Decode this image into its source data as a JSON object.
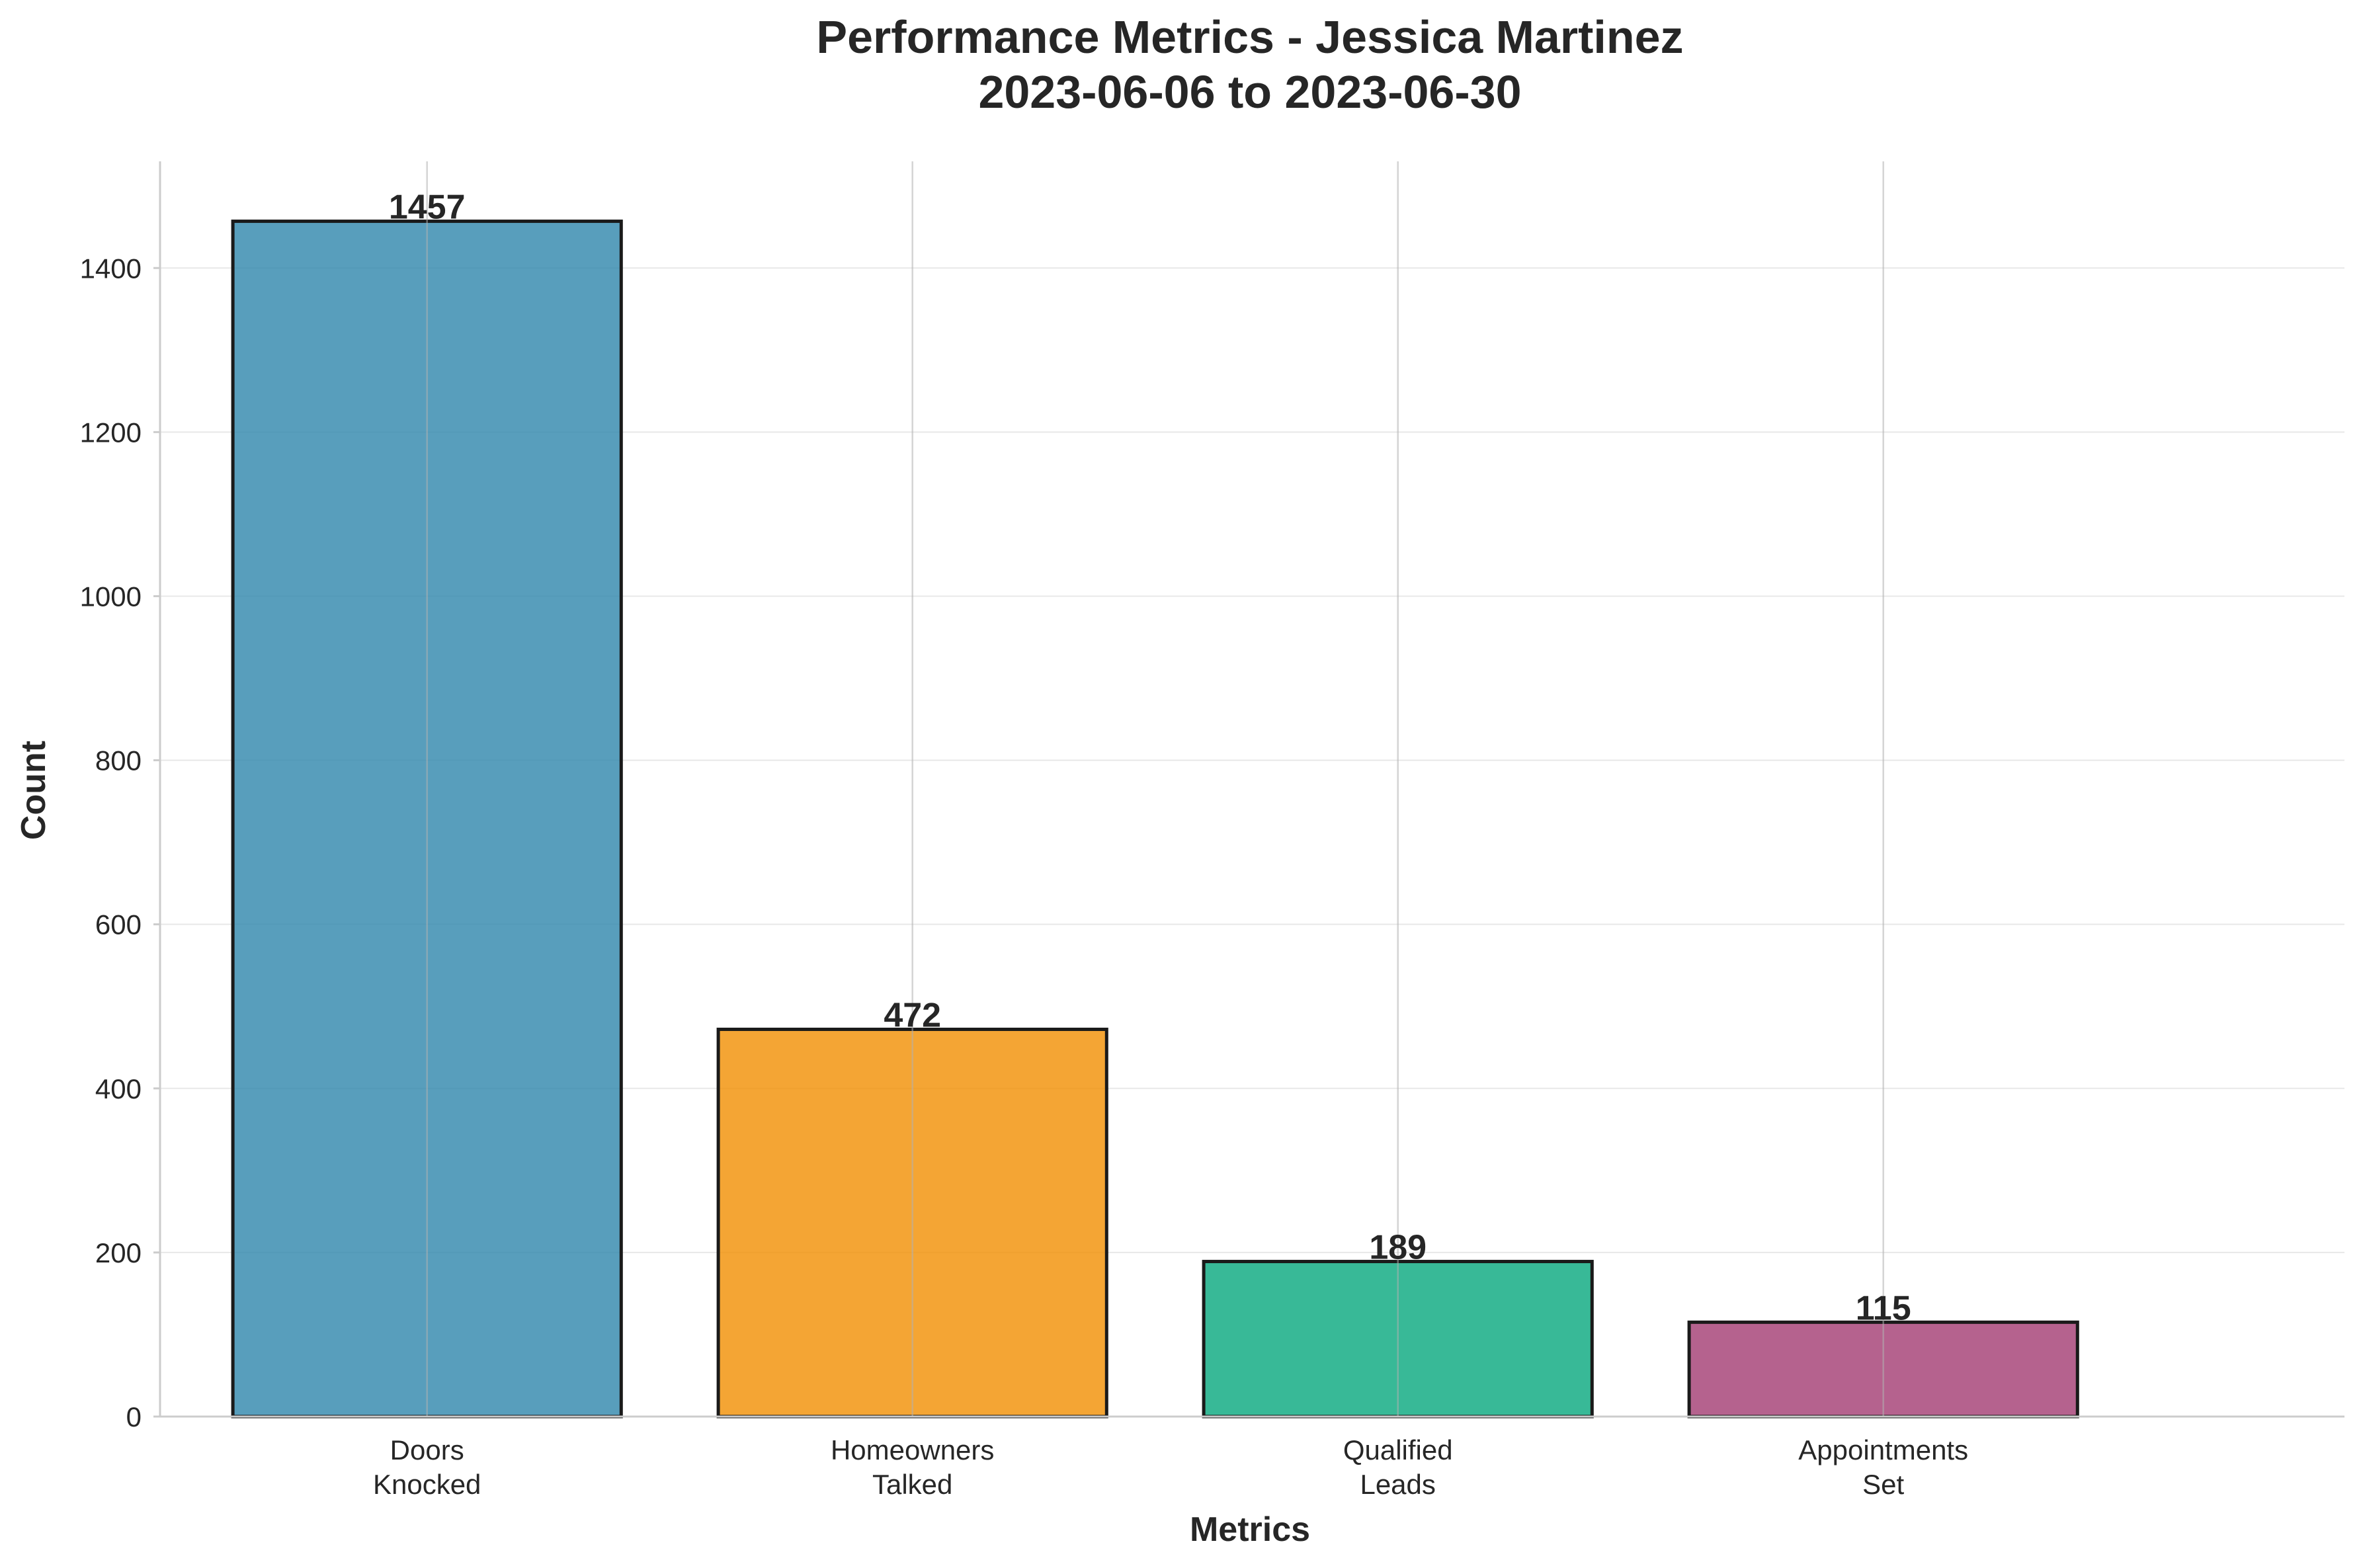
{
  "chart_data": {
    "type": "bar",
    "title": "Performance Metrics - Jessica Martinez",
    "subtitle": "2023-06-06 to 2023-06-30",
    "xlabel": "Metrics",
    "ylabel": "Count",
    "categories": [
      [
        "Doors",
        "Knocked"
      ],
      [
        "Homeowners",
        "Talked"
      ],
      [
        "Qualified",
        "Leads"
      ],
      [
        "Appointments",
        "Set"
      ]
    ],
    "values": [
      1457,
      472,
      189,
      115
    ],
    "value_labels": [
      "1457",
      "472",
      "189",
      "115"
    ],
    "colors": [
      "#2E86AB",
      "#F18F01",
      "#06A77D",
      "#A23B72"
    ],
    "bar_opacity": 0.8,
    "ylim": [
      0,
      1530
    ],
    "yticks": [
      0,
      200,
      400,
      600,
      800,
      1000,
      1200,
      1400
    ],
    "ytick_labels": [
      "0",
      "200",
      "400",
      "600",
      "800",
      "1000",
      "1200",
      "1400"
    ],
    "grid": true,
    "legend": "none"
  }
}
